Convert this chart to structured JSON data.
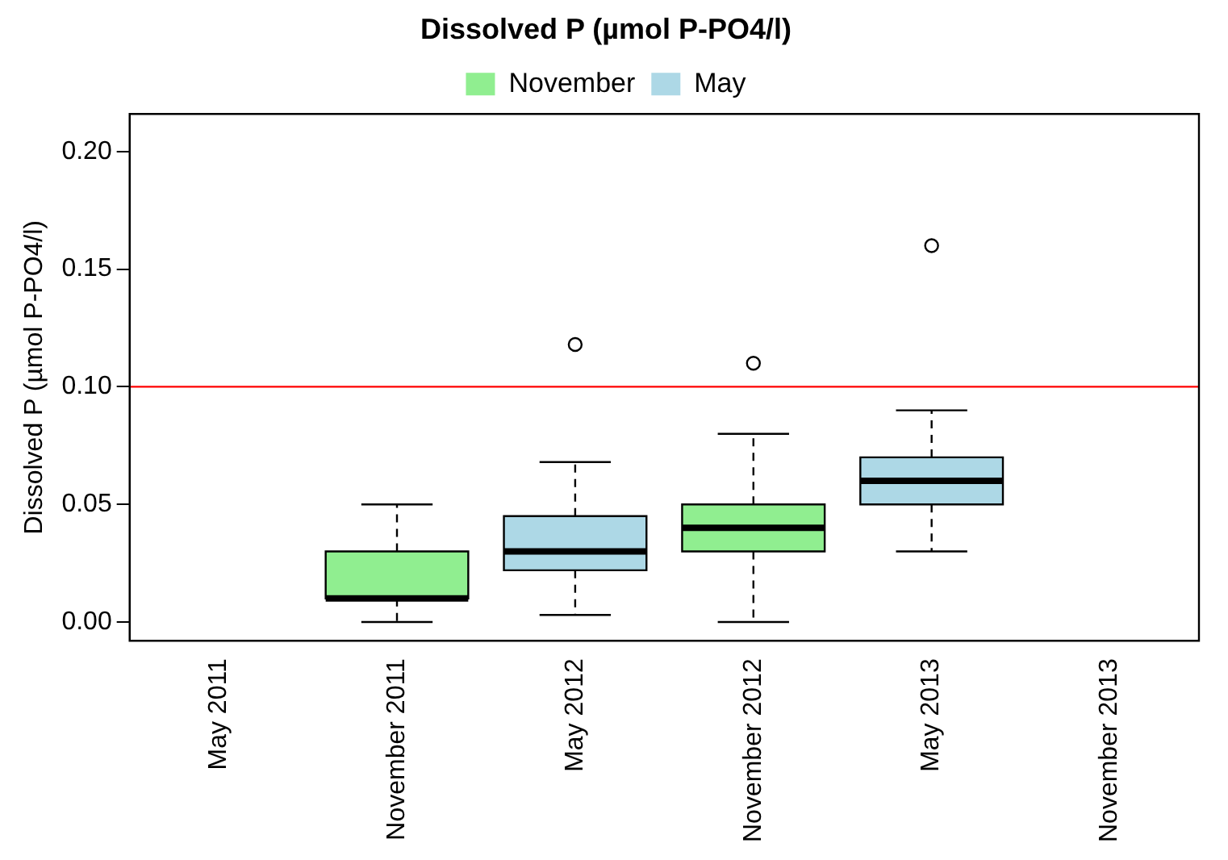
{
  "chart_data": {
    "type": "box",
    "title": "Dissolved P (µmol P-PO4/l)",
    "ylabel": "Dissolved P (µmol P-PO4/l)",
    "categories": [
      "May 2011",
      "November 2011",
      "May 2012",
      "November 2012",
      "May 2013",
      "November 2013"
    ],
    "series": [
      {
        "name": "November",
        "color": "#90ee90",
        "boxes": [
          null,
          {
            "low": 0,
            "q1": 0.01,
            "median": 0.01,
            "q3": 0.03,
            "high": 0.05
          },
          null,
          {
            "low": 0,
            "q1": 0.03,
            "median": 0.04,
            "q3": 0.05,
            "high": 0.08,
            "outliers": [
              0.11
            ]
          },
          null,
          null
        ]
      },
      {
        "name": "May",
        "color": "#add8e6",
        "boxes": [
          null,
          null,
          {
            "low": 0.003,
            "q1": 0.022,
            "median": 0.03,
            "q3": 0.045,
            "high": 0.068,
            "outliers": [
              0.118
            ]
          },
          null,
          {
            "low": 0.03,
            "q1": 0.05,
            "median": 0.06,
            "q3": 0.07,
            "high": 0.09,
            "outliers": [
              0.16
            ]
          },
          null
        ]
      }
    ],
    "ylim": [
      -0.008,
      0.216
    ],
    "yticks": [
      {
        "value": 0,
        "label": "0.00"
      },
      {
        "value": 0.05,
        "label": "0.05"
      },
      {
        "value": 0.1,
        "label": "0.10"
      },
      {
        "value": 0.15,
        "label": "0.15"
      },
      {
        "value": 0.2,
        "label": "0.20"
      }
    ],
    "ref_lines": [
      {
        "axis": "y",
        "value": 0.1,
        "color": "#ff0000"
      }
    ],
    "legend": "top",
    "grid": false
  }
}
